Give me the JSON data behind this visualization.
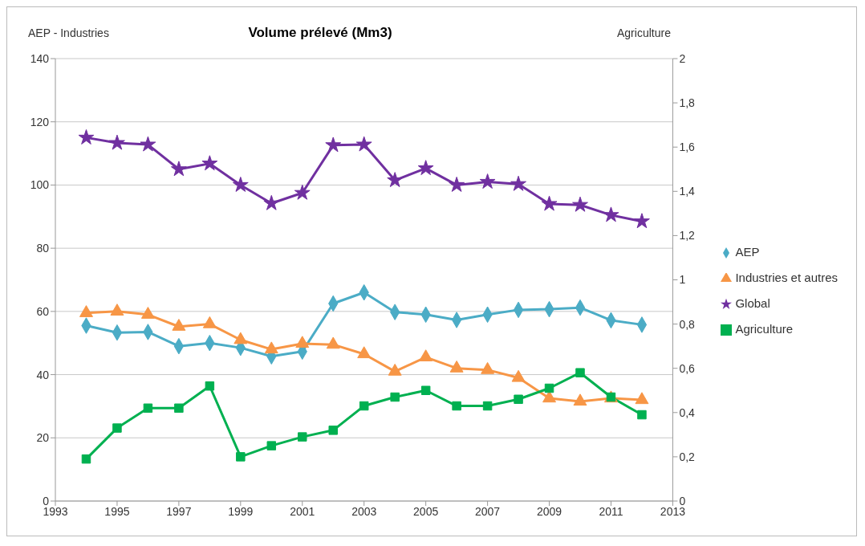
{
  "chart_data": {
    "type": "line",
    "title": "Volume prélevé (Mm3)",
    "ylabel": "AEP - Industries",
    "y2label": "Agriculture",
    "x": [
      1994,
      1995,
      1996,
      1997,
      1998,
      1999,
      2000,
      2001,
      2002,
      2003,
      2004,
      2005,
      2006,
      2007,
      2008,
      2009,
      2010,
      2011,
      2012
    ],
    "series": [
      {
        "name": "AEP",
        "color": "#4bacc6",
        "marker": "diamond",
        "values": [
          55.5,
          53.3,
          53.5,
          49,
          50,
          48.5,
          45.8,
          47.3,
          62.5,
          66,
          59.8,
          59,
          57.3,
          59,
          60.5,
          60.7,
          61.2,
          57.2,
          55.8
        ]
      },
      {
        "name": "Industries et autres",
        "color": "#f79646",
        "marker": "triangle",
        "values": [
          59.5,
          60,
          59,
          55.2,
          56,
          51,
          48,
          49.8,
          49.5,
          46.5,
          41,
          45.5,
          42,
          41.5,
          39,
          32.5,
          31.5,
          32.5,
          32
        ]
      },
      {
        "name": "Global",
        "color": "#7030a0",
        "marker": "star",
        "values": [
          115,
          113.3,
          112.8,
          105,
          106.8,
          100,
          94.2,
          97.5,
          112.6,
          112.8,
          101.5,
          105.3,
          100,
          101,
          100.3,
          94,
          93.7,
          90.5,
          88.5
        ]
      },
      {
        "name": "Agriculture",
        "color": "#00b050",
        "marker": "square",
        "axis": "y2",
        "values": [
          0.19,
          0.33,
          0.42,
          0.42,
          0.52,
          0.2,
          0.25,
          0.29,
          0.32,
          0.43,
          0.47,
          0.5,
          0.43,
          0.43,
          0.46,
          0.51,
          0.58,
          0.47,
          0.39
        ]
      }
    ],
    "xlim": [
      1993,
      2013
    ],
    "xticks": [
      1993,
      1995,
      1997,
      1999,
      2001,
      2003,
      2005,
      2007,
      2009,
      2011,
      2013
    ],
    "ylim": [
      0,
      140
    ],
    "yticks": [
      0,
      20,
      40,
      60,
      80,
      100,
      120,
      140
    ],
    "y2lim": [
      0,
      2
    ],
    "y2ticks": [
      0,
      {
        "value": 0.2,
        "label": "0,2"
      },
      {
        "value": 0.4,
        "label": "0,4"
      },
      {
        "value": 0.6,
        "label": "0,6"
      },
      {
        "value": 0.8,
        "label": "0,8"
      },
      1,
      {
        "value": 1.2,
        "label": "1,2"
      },
      {
        "value": 1.4,
        "label": "1,4"
      },
      {
        "value": 1.6,
        "label": "1,6"
      },
      {
        "value": 1.8,
        "label": "1,8"
      },
      2
    ],
    "grid": "y",
    "legend": "right",
    "line_style": "solid"
  }
}
